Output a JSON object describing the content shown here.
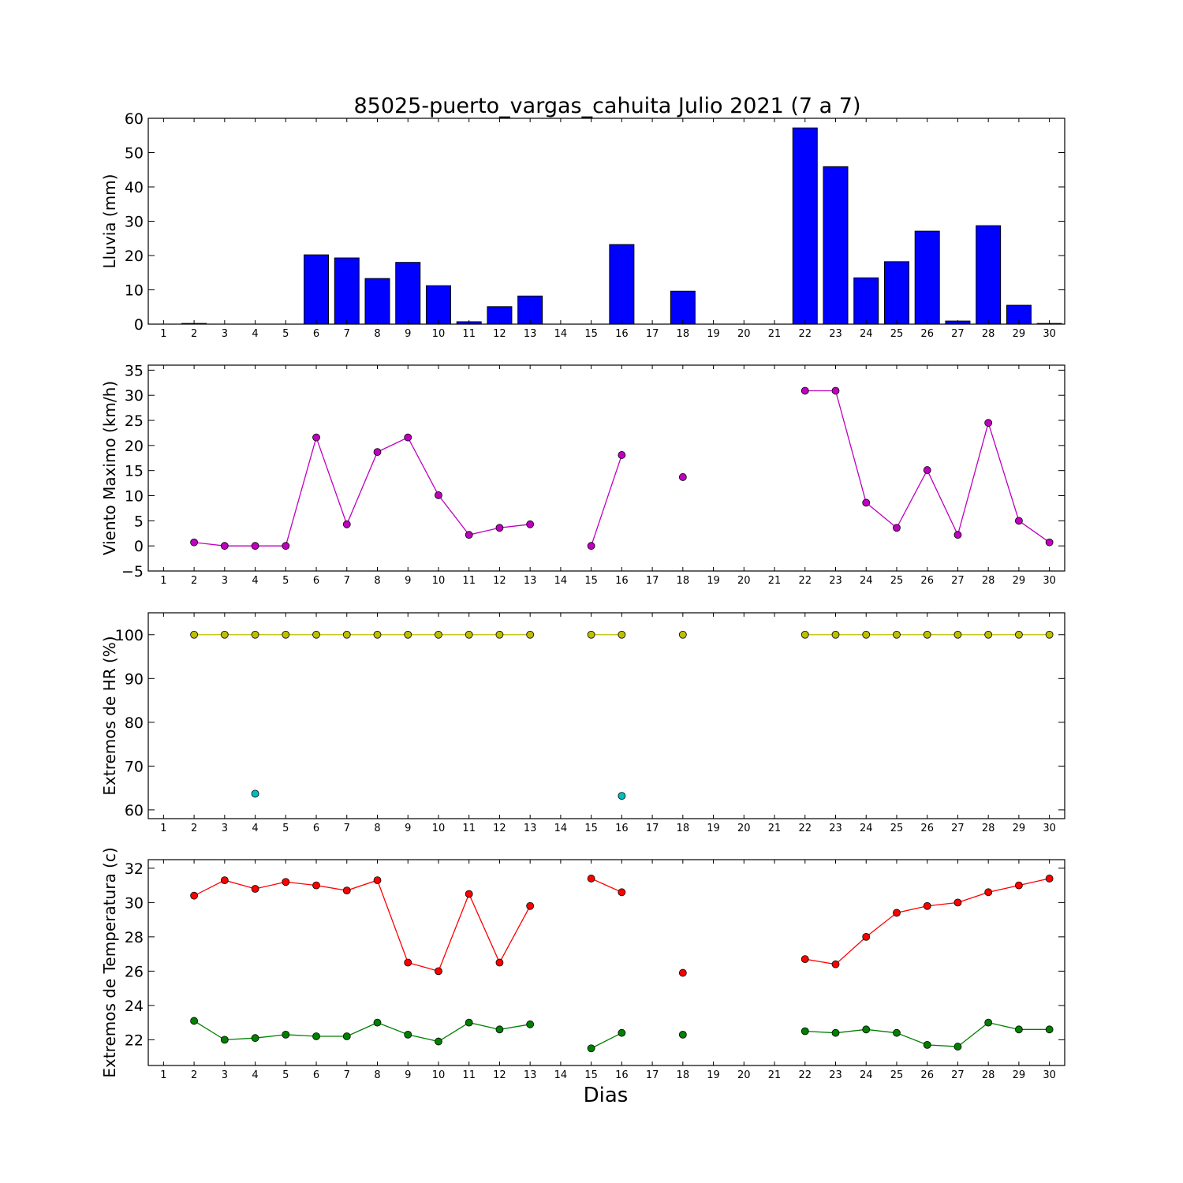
{
  "title": "85025-puerto_vargas_cahuita Julio 2021  (7 a 7)",
  "xlabel": "Dias",
  "colors": {
    "rain": "#0000ff",
    "wind": "#bf00bf",
    "hr_max": "#bfbf00",
    "hr_min": "#00bfbf",
    "t_max": "#ff0000",
    "t_min": "#008000"
  },
  "chart_data": [
    {
      "type": "bar",
      "ylabel": "Lluvia (mm)",
      "x": [
        1,
        2,
        3,
        4,
        5,
        6,
        7,
        8,
        9,
        10,
        11,
        12,
        13,
        14,
        15,
        16,
        17,
        18,
        19,
        20,
        21,
        22,
        23,
        24,
        25,
        26,
        27,
        28,
        29,
        30
      ],
      "xlim": [
        0.5,
        30.5
      ],
      "ylim": [
        0,
        60
      ],
      "yticks": [
        0,
        10,
        20,
        30,
        40,
        50,
        60
      ],
      "values": [
        0,
        0.2,
        0,
        0,
        0,
        20.2,
        19.3,
        13.3,
        18,
        11.2,
        0.7,
        5.1,
        8.2,
        0,
        0,
        23.2,
        0,
        9.6,
        0,
        0,
        0,
        57.2,
        45.9,
        13.5,
        18.2,
        27.1,
        0.9,
        28.7,
        5.5,
        0.2
      ]
    },
    {
      "type": "line",
      "ylabel": "Viento Maximo (km/h)",
      "x": [
        1,
        2,
        3,
        4,
        5,
        6,
        7,
        8,
        9,
        10,
        11,
        12,
        13,
        14,
        15,
        16,
        17,
        18,
        19,
        20,
        21,
        22,
        23,
        24,
        25,
        26,
        27,
        28,
        29,
        30
      ],
      "xlim": [
        0.5,
        30.5
      ],
      "ylim": [
        -5,
        36
      ],
      "yticks": [
        -5,
        0,
        5,
        10,
        15,
        20,
        25,
        30,
        35
      ],
      "series": [
        {
          "color_key": "wind",
          "values": [
            null,
            0.7,
            0,
            0,
            0,
            21.6,
            4.3,
            18.7,
            21.6,
            10.1,
            2.2,
            3.6,
            4.3,
            null,
            0,
            18.1,
            null,
            13.7,
            null,
            null,
            null,
            30.9,
            30.9,
            8.6,
            3.6,
            15.1,
            2.2,
            24.5,
            5,
            0.7
          ]
        }
      ]
    },
    {
      "type": "line",
      "ylabel": "Extremos de HR (%)",
      "x": [
        1,
        2,
        3,
        4,
        5,
        6,
        7,
        8,
        9,
        10,
        11,
        12,
        13,
        14,
        15,
        16,
        17,
        18,
        19,
        20,
        21,
        22,
        23,
        24,
        25,
        26,
        27,
        28,
        29,
        30
      ],
      "xlim": [
        0.5,
        30.5
      ],
      "ylim": [
        58,
        105
      ],
      "yticks": [
        60,
        70,
        80,
        90,
        100
      ],
      "series": [
        {
          "color_key": "hr_max",
          "values": [
            null,
            100,
            100,
            100,
            100,
            100,
            100,
            100,
            100,
            100,
            100,
            100,
            100,
            null,
            100,
            100,
            null,
            100,
            null,
            null,
            null,
            100,
            100,
            100,
            100,
            100,
            100,
            100,
            100,
            100
          ]
        },
        {
          "color_key": "hr_min",
          "values": [
            null,
            null,
            null,
            63.7,
            null,
            null,
            null,
            null,
            null,
            null,
            null,
            null,
            null,
            null,
            null,
            63.2,
            null,
            null,
            null,
            null,
            null,
            null,
            null,
            null,
            null,
            null,
            null,
            null,
            null,
            null
          ]
        }
      ]
    },
    {
      "type": "line",
      "ylabel": "Extremos de Temperatura (c)",
      "x": [
        1,
        2,
        3,
        4,
        5,
        6,
        7,
        8,
        9,
        10,
        11,
        12,
        13,
        14,
        15,
        16,
        17,
        18,
        19,
        20,
        21,
        22,
        23,
        24,
        25,
        26,
        27,
        28,
        29,
        30
      ],
      "xlim": [
        0.5,
        30.5
      ],
      "ylim": [
        20.5,
        32.5
      ],
      "yticks": [
        22,
        24,
        26,
        28,
        30,
        32
      ],
      "series": [
        {
          "color_key": "t_max",
          "values": [
            null,
            30.4,
            31.3,
            30.8,
            31.2,
            31,
            30.7,
            31.3,
            26.5,
            26,
            30.5,
            26.5,
            29.8,
            null,
            31.4,
            30.6,
            null,
            25.9,
            null,
            null,
            null,
            26.7,
            26.4,
            28,
            29.4,
            29.8,
            30,
            30.6,
            31,
            31.4
          ]
        },
        {
          "color_key": "t_min",
          "values": [
            null,
            23.1,
            22,
            22.1,
            22.3,
            22.2,
            22.2,
            23,
            22.3,
            21.9,
            23,
            22.6,
            22.9,
            null,
            21.5,
            22.4,
            null,
            22.3,
            null,
            null,
            null,
            22.5,
            22.4,
            22.6,
            22.4,
            21.7,
            21.6,
            23,
            22.6,
            22.6
          ]
        }
      ]
    }
  ]
}
